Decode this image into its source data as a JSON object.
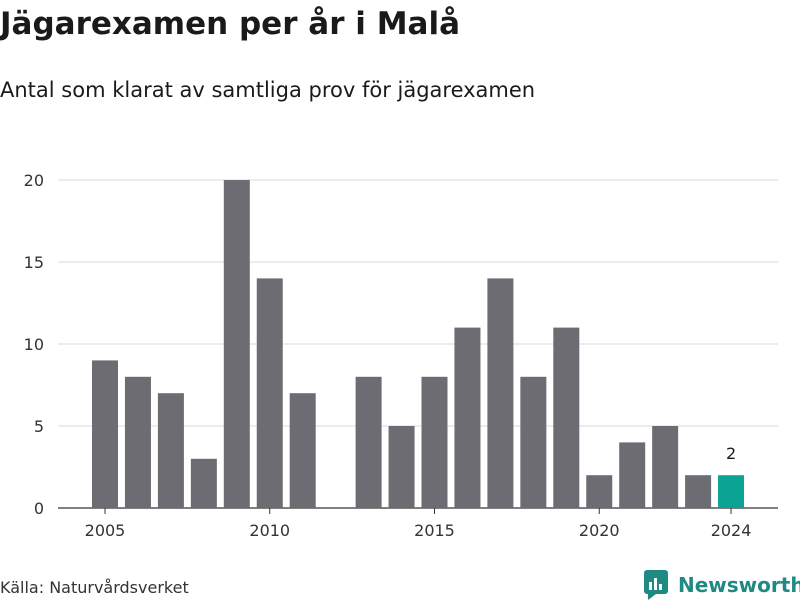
{
  "title": "Jägarexamen per år i Malå",
  "subtitle": "Antal som klarat av samtliga prov för jägarexamen",
  "source": "Källa: Naturvårdsverket",
  "brand": {
    "name": "Newsworthy",
    "icon": "newsworthy-logo-icon"
  },
  "colors": {
    "bar": "#6d6c72",
    "highlight": "#0aa394",
    "grid": "#d9d9d9",
    "brand": "#1f8a83"
  },
  "chart_data": {
    "type": "bar",
    "x": [
      2005,
      2006,
      2007,
      2008,
      2009,
      2010,
      2011,
      2013,
      2014,
      2015,
      2016,
      2017,
      2018,
      2019,
      2020,
      2021,
      2022,
      2023,
      2024
    ],
    "values": [
      9,
      8,
      7,
      3,
      20,
      14,
      7,
      8,
      5,
      8,
      11,
      14,
      8,
      11,
      2,
      4,
      5,
      2,
      2
    ],
    "highlight": {
      "x": 2024,
      "label": "2"
    },
    "xticks": [
      2005,
      2010,
      2015,
      2020,
      2024
    ],
    "yticks": [
      0,
      5,
      10,
      15,
      20
    ],
    "ylim": [
      0,
      20
    ],
    "grid": true
  }
}
